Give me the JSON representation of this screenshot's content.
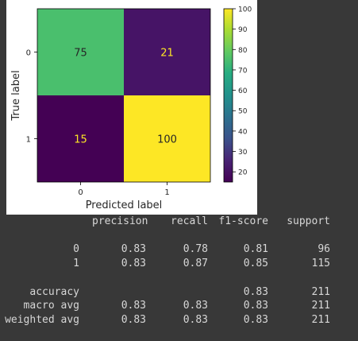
{
  "chart_data": {
    "type": "heatmap",
    "title": "",
    "xlabel": "Predicted label",
    "ylabel": "True label",
    "x_categories": [
      "0",
      "1"
    ],
    "y_categories": [
      "0",
      "1"
    ],
    "matrix": [
      [
        75,
        21
      ],
      [
        15,
        100
      ]
    ],
    "colorbar": {
      "ticks": [
        "20",
        "30",
        "40",
        "50",
        "60",
        "70",
        "80",
        "90",
        "100"
      ],
      "range": [
        15,
        100
      ],
      "colormap": "viridis"
    }
  },
  "report": {
    "headers": [
      "precision",
      "recall",
      "f1-score",
      "support"
    ],
    "rows": [
      {
        "label": "0",
        "precision": "0.83",
        "recall": "0.78",
        "f1": "0.81",
        "support": "96"
      },
      {
        "label": "1",
        "precision": "0.83",
        "recall": "0.87",
        "f1": "0.85",
        "support": "115"
      }
    ],
    "summary": [
      {
        "label": "accuracy",
        "precision": "",
        "recall": "",
        "f1": "0.83",
        "support": "211"
      },
      {
        "label": "macro avg",
        "precision": "0.83",
        "recall": "0.83",
        "f1": "0.83",
        "support": "211"
      },
      {
        "label": "weighted avg",
        "precision": "0.83",
        "recall": "0.83",
        "f1": "0.83",
        "support": "211"
      }
    ]
  },
  "colors": {
    "background": "#383838",
    "figure_background": "#ffffff",
    "report_text": "#d7d7d7",
    "text_on_light": "#262626",
    "text_on_dark": "#fde725"
  }
}
